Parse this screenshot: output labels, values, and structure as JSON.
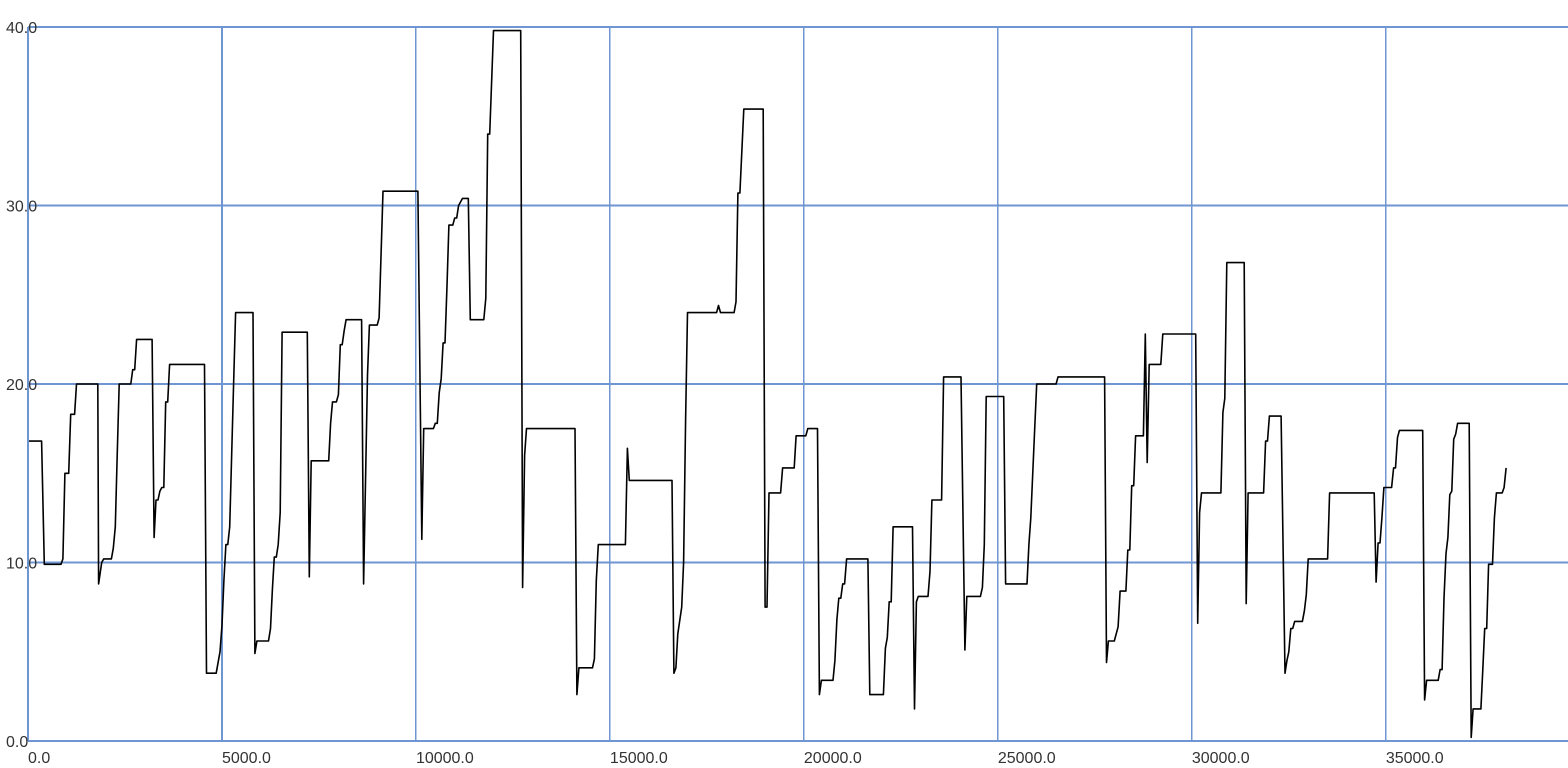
{
  "chart_data": {
    "type": "line",
    "title": "",
    "xlabel": "",
    "ylabel": "",
    "xlim": [
      0,
      40000
    ],
    "ylim": [
      0,
      40
    ],
    "grid": true,
    "colors": {
      "grid": "#6f96d2",
      "line": "#000000",
      "text": "#333333",
      "background": "#ffffff"
    },
    "x_ticks": [
      {
        "value": 0,
        "label": "0.0"
      },
      {
        "value": 5000,
        "label": "5000.0"
      },
      {
        "value": 10000,
        "label": "10000.0"
      },
      {
        "value": 15000,
        "label": "15000.0"
      },
      {
        "value": 20000,
        "label": "20000.0"
      },
      {
        "value": 25000,
        "label": "25000.0"
      },
      {
        "value": 30000,
        "label": "30000.0"
      },
      {
        "value": 35000,
        "label": "35000.0"
      }
    ],
    "y_ticks": [
      {
        "value": 0,
        "label": "0.0"
      },
      {
        "value": 10,
        "label": "10.0"
      },
      {
        "value": 20,
        "label": "20.0"
      },
      {
        "value": 30,
        "label": "30.0"
      },
      {
        "value": 40,
        "label": "40.0"
      }
    ],
    "series": [
      {
        "points": [
          [
            0,
            16.8
          ],
          [
            350,
            16.8
          ],
          [
            420,
            9.9
          ],
          [
            850,
            9.9
          ],
          [
            900,
            10.2
          ],
          [
            950,
            15
          ],
          [
            1050,
            15
          ],
          [
            1100,
            18.3
          ],
          [
            1200,
            18.3
          ],
          [
            1250,
            20
          ],
          [
            1800,
            20
          ],
          [
            1820,
            8.8
          ],
          [
            1900,
            10
          ],
          [
            1950,
            10.2
          ],
          [
            2150,
            10.2
          ],
          [
            2200,
            10.8
          ],
          [
            2250,
            12
          ],
          [
            2300,
            16
          ],
          [
            2350,
            20
          ],
          [
            2650,
            20
          ],
          [
            2700,
            20.8
          ],
          [
            2750,
            20.8
          ],
          [
            2800,
            22.5
          ],
          [
            3200,
            22.5
          ],
          [
            3250,
            11.4
          ],
          [
            3300,
            13.5
          ],
          [
            3350,
            13.5
          ],
          [
            3400,
            14
          ],
          [
            3450,
            14.2
          ],
          [
            3500,
            14.2
          ],
          [
            3550,
            19
          ],
          [
            3600,
            19
          ],
          [
            3650,
            21.1
          ],
          [
            4550,
            21.1
          ],
          [
            4600,
            3.8
          ],
          [
            4850,
            3.8
          ],
          [
            4950,
            5
          ],
          [
            5000,
            6.5
          ],
          [
            5050,
            9
          ],
          [
            5100,
            11
          ],
          [
            5150,
            11
          ],
          [
            5200,
            12
          ],
          [
            5300,
            20
          ],
          [
            5350,
            24
          ],
          [
            5800,
            24
          ],
          [
            5850,
            4.9
          ],
          [
            5900,
            5.6
          ],
          [
            6200,
            5.6
          ],
          [
            6250,
            6.3
          ],
          [
            6300,
            8.5
          ],
          [
            6350,
            10.3
          ],
          [
            6400,
            10.3
          ],
          [
            6450,
            11
          ],
          [
            6500,
            12.8
          ],
          [
            6550,
            22.9
          ],
          [
            7200,
            22.9
          ],
          [
            7250,
            9.2
          ],
          [
            7300,
            15.7
          ],
          [
            7750,
            15.7
          ],
          [
            7800,
            17.8
          ],
          [
            7850,
            19
          ],
          [
            7950,
            19
          ],
          [
            8000,
            19.4
          ],
          [
            8050,
            22.2
          ],
          [
            8100,
            22.2
          ],
          [
            8150,
            23
          ],
          [
            8200,
            23.6
          ],
          [
            8600,
            23.6
          ],
          [
            8650,
            8.8
          ],
          [
            8750,
            20.5
          ],
          [
            8800,
            23.3
          ],
          [
            9000,
            23.3
          ],
          [
            9050,
            23.7
          ],
          [
            9150,
            30.8
          ],
          [
            10050,
            30.8
          ],
          [
            10150,
            11.3
          ],
          [
            10200,
            17.5
          ],
          [
            10450,
            17.5
          ],
          [
            10500,
            17.8
          ],
          [
            10550,
            17.8
          ],
          [
            10600,
            19.5
          ],
          [
            10650,
            20.3
          ],
          [
            10700,
            22.3
          ],
          [
            10750,
            22.3
          ],
          [
            10800,
            25.5
          ],
          [
            10850,
            28.9
          ],
          [
            10950,
            28.9
          ],
          [
            11000,
            29.3
          ],
          [
            11050,
            29.3
          ],
          [
            11100,
            30
          ],
          [
            11200,
            30.4
          ],
          [
            11350,
            30.4
          ],
          [
            11400,
            23.6
          ],
          [
            11750,
            23.6
          ],
          [
            11800,
            24.8
          ],
          [
            11850,
            34
          ],
          [
            11900,
            34
          ],
          [
            12000,
            39.8
          ],
          [
            12700,
            39.8
          ],
          [
            12750,
            8.6
          ],
          [
            12800,
            16
          ],
          [
            12850,
            17.5
          ],
          [
            14100,
            17.5
          ],
          [
            14150,
            2.6
          ],
          [
            14200,
            4.1
          ],
          [
            14550,
            4.1
          ],
          [
            14600,
            4.6
          ],
          [
            14650,
            9
          ],
          [
            14700,
            11
          ],
          [
            15400,
            11
          ],
          [
            15450,
            16.4
          ],
          [
            15500,
            14.6
          ],
          [
            16600,
            14.6
          ],
          [
            16650,
            3.8
          ],
          [
            16700,
            4.1
          ],
          [
            16750,
            6
          ],
          [
            16850,
            7.5
          ],
          [
            16900,
            10
          ],
          [
            16950,
            18
          ],
          [
            17000,
            24
          ],
          [
            17750,
            24
          ],
          [
            17800,
            24.4
          ],
          [
            17850,
            24
          ],
          [
            18200,
            24
          ],
          [
            18250,
            24.6
          ],
          [
            18300,
            30.7
          ],
          [
            18350,
            30.7
          ],
          [
            18450,
            35.4
          ],
          [
            18950,
            35.4
          ],
          [
            19000,
            7.5
          ],
          [
            19050,
            7.5
          ],
          [
            19100,
            13.9
          ],
          [
            19400,
            13.9
          ],
          [
            19450,
            15.3
          ],
          [
            19750,
            15.3
          ],
          [
            19800,
            17.1
          ],
          [
            20050,
            17.1
          ],
          [
            20100,
            17.5
          ],
          [
            20350,
            17.5
          ],
          [
            20400,
            2.6
          ],
          [
            20450,
            3.4
          ],
          [
            20750,
            3.4
          ],
          [
            20800,
            4.5
          ],
          [
            20850,
            6.8
          ],
          [
            20900,
            8
          ],
          [
            20950,
            8
          ],
          [
            21000,
            8.8
          ],
          [
            21050,
            8.8
          ],
          [
            21100,
            10.2
          ],
          [
            21650,
            10.2
          ],
          [
            21700,
            2.6
          ],
          [
            22050,
            2.6
          ],
          [
            22100,
            5.2
          ],
          [
            22150,
            5.8
          ],
          [
            22200,
            7.8
          ],
          [
            22250,
            7.8
          ],
          [
            22300,
            12
          ],
          [
            22800,
            12
          ],
          [
            22850,
            1.8
          ],
          [
            22900,
            7.8
          ],
          [
            22950,
            8.1
          ],
          [
            23200,
            8.1
          ],
          [
            23250,
            9.5
          ],
          [
            23300,
            13.5
          ],
          [
            23550,
            13.5
          ],
          [
            23600,
            20.4
          ],
          [
            24050,
            20.4
          ],
          [
            24150,
            5.1
          ],
          [
            24200,
            8.1
          ],
          [
            24550,
            8.1
          ],
          [
            24600,
            8.6
          ],
          [
            24650,
            11
          ],
          [
            24700,
            19.3
          ],
          [
            25150,
            19.3
          ],
          [
            25200,
            8.8
          ],
          [
            25750,
            8.8
          ],
          [
            25800,
            11
          ],
          [
            25850,
            12.5
          ],
          [
            25950,
            17.5
          ],
          [
            26000,
            20
          ],
          [
            26500,
            20
          ],
          [
            26550,
            20.4
          ],
          [
            27750,
            20.4
          ],
          [
            27800,
            4.4
          ],
          [
            27850,
            5.6
          ],
          [
            28000,
            5.6
          ],
          [
            28050,
            6
          ],
          [
            28100,
            6.4
          ],
          [
            28150,
            8.4
          ],
          [
            28300,
            8.4
          ],
          [
            28350,
            10.7
          ],
          [
            28400,
            10.7
          ],
          [
            28450,
            14.3
          ],
          [
            28500,
            14.3
          ],
          [
            28550,
            17.1
          ],
          [
            28750,
            17.1
          ],
          [
            28800,
            22.8
          ],
          [
            28850,
            15.6
          ],
          [
            28900,
            21.1
          ],
          [
            29200,
            21.1
          ],
          [
            29250,
            22.8
          ],
          [
            30100,
            22.8
          ],
          [
            30150,
            6.6
          ],
          [
            30200,
            12.8
          ],
          [
            30250,
            13.9
          ],
          [
            30750,
            13.9
          ],
          [
            30800,
            18.4
          ],
          [
            30850,
            19.2
          ],
          [
            30900,
            26.8
          ],
          [
            31350,
            26.8
          ],
          [
            31400,
            7.7
          ],
          [
            31450,
            13.9
          ],
          [
            31850,
            13.9
          ],
          [
            31900,
            16.8
          ],
          [
            31950,
            16.8
          ],
          [
            32000,
            18.2
          ],
          [
            32300,
            18.2
          ],
          [
            32400,
            3.8
          ],
          [
            32450,
            4.5
          ],
          [
            32500,
            5
          ],
          [
            32550,
            6.3
          ],
          [
            32600,
            6.3
          ],
          [
            32650,
            6.7
          ],
          [
            32850,
            6.7
          ],
          [
            32900,
            7.3
          ],
          [
            32950,
            8.2
          ],
          [
            33000,
            10.2
          ],
          [
            33500,
            10.2
          ],
          [
            33550,
            13.9
          ],
          [
            34700,
            13.9
          ],
          [
            34750,
            8.9
          ],
          [
            34800,
            11.1
          ],
          [
            34850,
            11.1
          ],
          [
            34900,
            12.5
          ],
          [
            34950,
            14.2
          ],
          [
            35150,
            14.2
          ],
          [
            35200,
            15.3
          ],
          [
            35250,
            15.3
          ],
          [
            35300,
            17
          ],
          [
            35350,
            17.4
          ],
          [
            35950,
            17.4
          ],
          [
            36000,
            2.3
          ],
          [
            36050,
            3.4
          ],
          [
            36350,
            3.4
          ],
          [
            36400,
            4
          ],
          [
            36450,
            4
          ],
          [
            36500,
            8
          ],
          [
            36550,
            10.5
          ],
          [
            36600,
            11.4
          ],
          [
            36650,
            13.8
          ],
          [
            36700,
            14
          ],
          [
            36750,
            16.9
          ],
          [
            36800,
            17.2
          ],
          [
            36850,
            17.8
          ],
          [
            37150,
            17.8
          ],
          [
            37200,
            0.2
          ],
          [
            37250,
            1.8
          ],
          [
            37450,
            1.8
          ],
          [
            37500,
            4
          ],
          [
            37550,
            6.3
          ],
          [
            37600,
            6.3
          ],
          [
            37650,
            9.9
          ],
          [
            37750,
            9.9
          ],
          [
            37800,
            12.5
          ],
          [
            37850,
            13.9
          ],
          [
            38000,
            13.9
          ],
          [
            38050,
            14.2
          ],
          [
            38100,
            15.3
          ]
        ]
      }
    ]
  }
}
